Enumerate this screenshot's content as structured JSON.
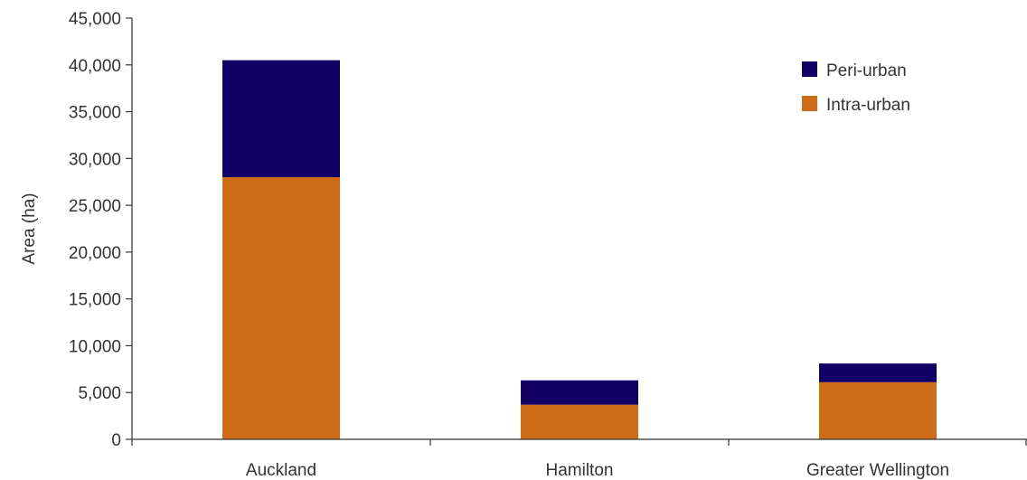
{
  "chart_data": {
    "type": "bar",
    "stacked": true,
    "categories": [
      "Auckland",
      "Hamilton",
      "Greater Wellington"
    ],
    "series": [
      {
        "name": "Intra-urban",
        "color": "#D06B17",
        "values": [
          28000,
          3700,
          6100
        ]
      },
      {
        "name": "Peri-urban",
        "color": "#130066",
        "values": [
          12500,
          2600,
          2000
        ]
      }
    ],
    "title": "",
    "xlabel": "",
    "ylabel": "Area (ha)",
    "ylim": [
      0,
      45000
    ],
    "yticks": [
      0,
      5000,
      10000,
      15000,
      20000,
      25000,
      30000,
      35000,
      40000,
      45000
    ],
    "ytick_labels": [
      "0",
      "5,000",
      "10,000",
      "15,000",
      "20,000",
      "25,000",
      "30,000",
      "35,000",
      "40,000",
      "45,000"
    ],
    "legend": {
      "position": "top-right",
      "entries": [
        "Peri-urban",
        "Intra-urban"
      ]
    },
    "grid": false
  }
}
